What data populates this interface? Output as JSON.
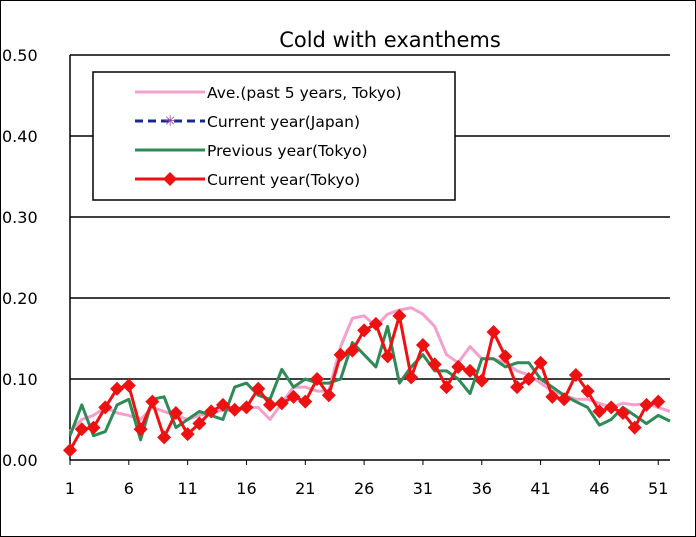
{
  "chart_data": {
    "type": "line",
    "title": "Cold with exanthems",
    "xlabel": "",
    "ylabel": "",
    "ylim": [
      0,
      0.5
    ],
    "yticks": [
      "0.00",
      "0.10",
      "0.20",
      "0.30",
      "0.40",
      "0.50"
    ],
    "xticks": [
      "1",
      "6",
      "11",
      "16",
      "21",
      "26",
      "31",
      "36",
      "41",
      "46",
      "51"
    ],
    "xlim": [
      1,
      52
    ],
    "grid": true,
    "legend_position": "top-left",
    "series": [
      {
        "name": "Ave.(past 5 years, Tokyo)",
        "color": "#f4a0cc",
        "style": "solid",
        "marker": "none",
        "values": [
          0.035,
          0.05,
          0.055,
          0.065,
          0.058,
          0.055,
          0.05,
          0.065,
          0.06,
          0.055,
          0.05,
          0.055,
          0.058,
          0.062,
          0.06,
          0.065,
          0.065,
          0.05,
          0.07,
          0.09,
          0.09,
          0.085,
          0.085,
          0.14,
          0.175,
          0.178,
          0.165,
          0.18,
          0.185,
          0.188,
          0.18,
          0.165,
          0.13,
          0.12,
          0.14,
          0.125,
          0.125,
          0.12,
          0.11,
          0.105,
          0.095,
          0.085,
          0.08,
          0.075,
          0.075,
          0.07,
          0.065,
          0.07,
          0.068,
          0.07,
          0.065,
          0.06
        ]
      },
      {
        "name": "Current year(Japan)",
        "color": "#1a2a8a",
        "style": "dashed",
        "marker": "star",
        "values": []
      },
      {
        "name": "Previous year(Tokyo)",
        "color": "#2e8b57",
        "style": "solid",
        "marker": "none",
        "values": [
          0.03,
          0.068,
          0.03,
          0.035,
          0.068,
          0.075,
          0.025,
          0.075,
          0.078,
          0.04,
          0.05,
          0.06,
          0.055,
          0.05,
          0.09,
          0.095,
          0.08,
          0.075,
          0.112,
          0.09,
          0.1,
          0.095,
          0.095,
          0.1,
          0.145,
          0.13,
          0.115,
          0.165,
          0.095,
          0.115,
          0.13,
          0.11,
          0.11,
          0.1,
          0.082,
          0.125,
          0.125,
          0.115,
          0.12,
          0.12,
          0.1,
          0.09,
          0.08,
          0.072,
          0.065,
          0.043,
          0.05,
          0.065,
          0.055,
          0.045,
          0.055,
          0.048
        ]
      },
      {
        "name": "Current year(Tokyo)",
        "color": "#ee1111",
        "style": "solid",
        "marker": "diamond",
        "values": [
          0.012,
          0.038,
          0.04,
          0.065,
          0.088,
          0.092,
          0.038,
          0.072,
          0.028,
          0.058,
          0.032,
          0.045,
          0.06,
          0.068,
          0.062,
          0.065,
          0.088,
          0.068,
          0.07,
          0.078,
          0.072,
          0.1,
          0.08,
          0.13,
          0.135,
          0.16,
          0.168,
          0.128,
          0.178,
          0.102,
          0.142,
          0.118,
          0.09,
          0.115,
          0.11,
          0.098,
          0.158,
          0.128,
          0.09,
          0.1,
          0.12,
          0.078,
          0.075,
          0.105,
          0.085,
          0.06,
          0.065,
          0.058,
          0.04,
          0.068,
          0.072
        ]
      }
    ]
  }
}
